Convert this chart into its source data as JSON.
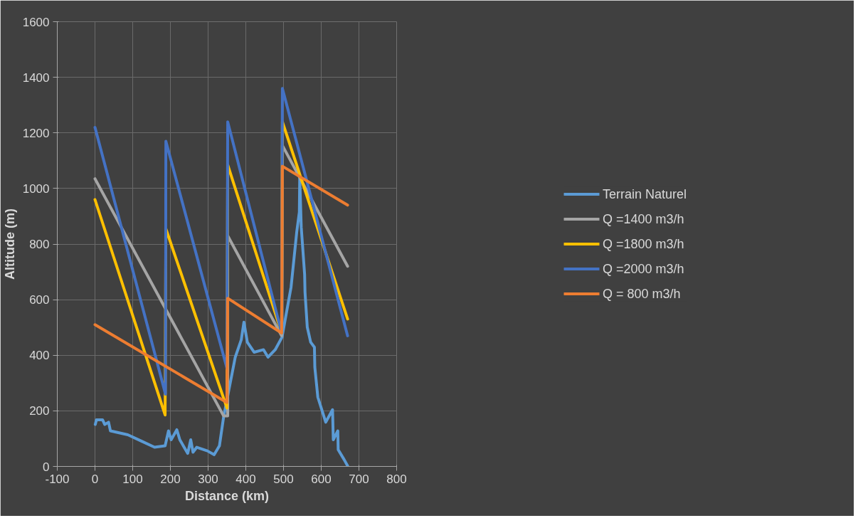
{
  "chart_data": {
    "type": "line",
    "xlabel": "Distance (km)",
    "ylabel": "Altitude (m)",
    "xlim": [
      -100,
      800
    ],
    "xticks": [
      -100,
      0,
      100,
      200,
      300,
      400,
      500,
      600,
      700,
      800
    ],
    "ylim": [
      0,
      1600
    ],
    "yticks": [
      0,
      200,
      400,
      600,
      800,
      1000,
      1200,
      1400,
      1600
    ],
    "grid": true,
    "legend": "right",
    "line_style": "solid",
    "marker": "none",
    "series": [
      {
        "name": "Terrain Naturel",
        "color": "#5b9bd5",
        "x": [
          0.7,
          4,
          9.6,
          20,
          26,
          36,
          41,
          87,
          122,
          158,
          186,
          195,
          202,
          217,
          225,
          246,
          254,
          260,
          270,
          298,
          316,
          330,
          341,
          372,
          388,
          395,
          404,
          422,
          447,
          459,
          478,
          496,
          520,
          535,
          542,
          543,
          547,
          556,
          557,
          563,
          572,
          582,
          583,
          591,
          612,
          630,
          632,
          644,
          645,
          661,
          670
        ],
        "values": [
          151,
          168,
          168,
          168,
          151,
          159,
          128,
          114,
          92,
          69,
          74,
          128,
          96,
          132,
          96,
          47,
          96,
          51,
          69,
          56,
          42,
          74,
          177,
          393,
          456,
          519,
          447,
          411,
          420,
          393,
          420,
          465,
          645,
          843,
          915,
          1041,
          861,
          690,
          627,
          501,
          447,
          429,
          357,
          249,
          159,
          204,
          96,
          128,
          60,
          24,
          2
        ]
      },
      {
        "name": "Q =1400 m3/h",
        "color": "#a5a5a5",
        "x": [
          0,
          341,
          352,
          352,
          495,
          497,
          670
        ],
        "values": [
          1035,
          182,
          182,
          830,
          470,
          1155,
          720
        ]
      },
      {
        "name": "Q =1800 m3/h",
        "color": "#ffc000",
        "x": [
          0,
          186,
          188,
          350,
          352,
          495,
          497,
          670
        ],
        "values": [
          960,
          185,
          855,
          210,
          1085,
          480,
          1240,
          530
        ]
      },
      {
        "name": "Q =2000 m3/h",
        "color": "#4472c4",
        "x": [
          0,
          187,
          188,
          350,
          352,
          495,
          497,
          670
        ],
        "values": [
          1220,
          260,
          1170,
          353,
          1240,
          480,
          1360,
          470
        ]
      },
      {
        "name": "Q = 800 m3/h",
        "color": "#ed7d31",
        "x": [
          0,
          350,
          352,
          495,
          497,
          670
        ],
        "values": [
          510,
          230,
          605,
          480,
          1080,
          940
        ]
      }
    ]
  }
}
